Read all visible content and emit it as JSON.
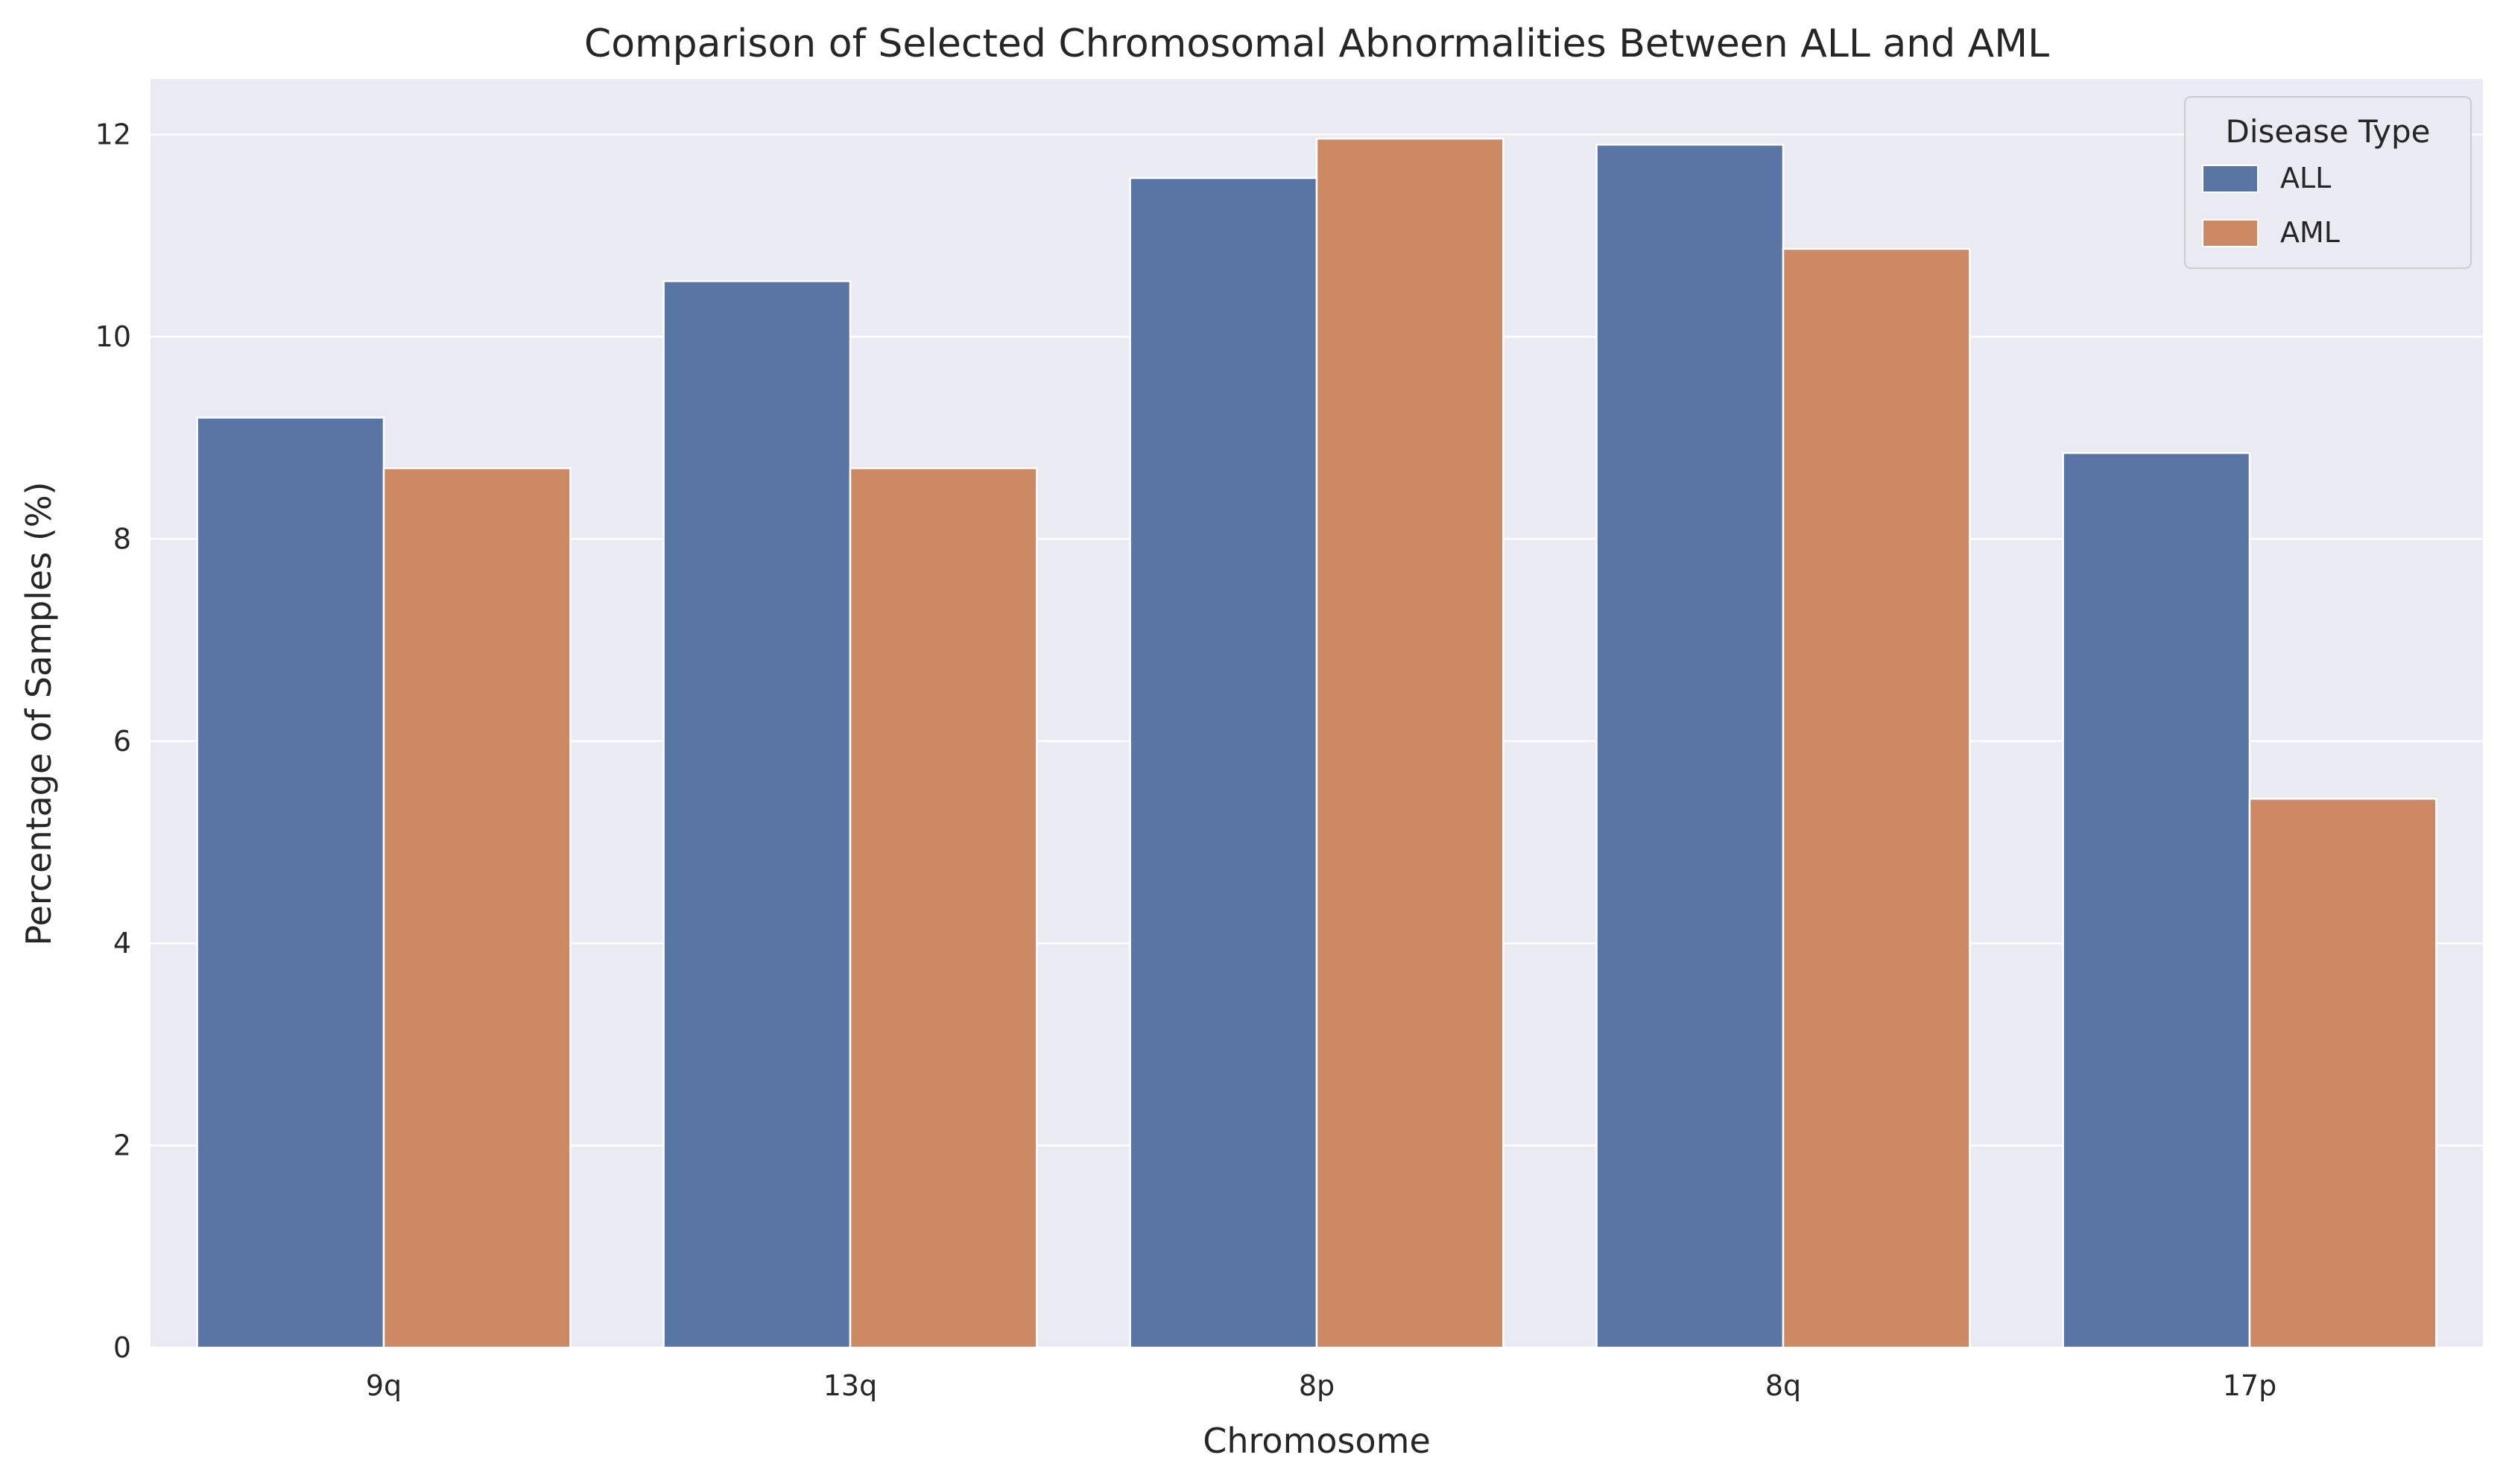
{
  "chart_data": {
    "type": "bar",
    "title": "Comparison of Selected Chromosomal Abnormalities Between ALL and AML",
    "xlabel": "Chromosome",
    "ylabel": "Percentage of Samples (%)",
    "categories": [
      "9q",
      "13q",
      "8p",
      "8q",
      "17p"
    ],
    "series": [
      {
        "name": "ALL",
        "color": "#5975a4",
        "values": [
          9.2,
          10.55,
          11.57,
          11.9,
          8.85
        ]
      },
      {
        "name": "AML",
        "color": "#cc8963",
        "values": [
          8.7,
          8.7,
          11.96,
          10.87,
          5.43
        ]
      }
    ],
    "ylim": [
      0,
      12.55
    ],
    "yticks": [
      0,
      2,
      4,
      6,
      8,
      10,
      12
    ],
    "grid": true,
    "legend": {
      "title": "Disease Type",
      "placement": "top-right"
    }
  }
}
